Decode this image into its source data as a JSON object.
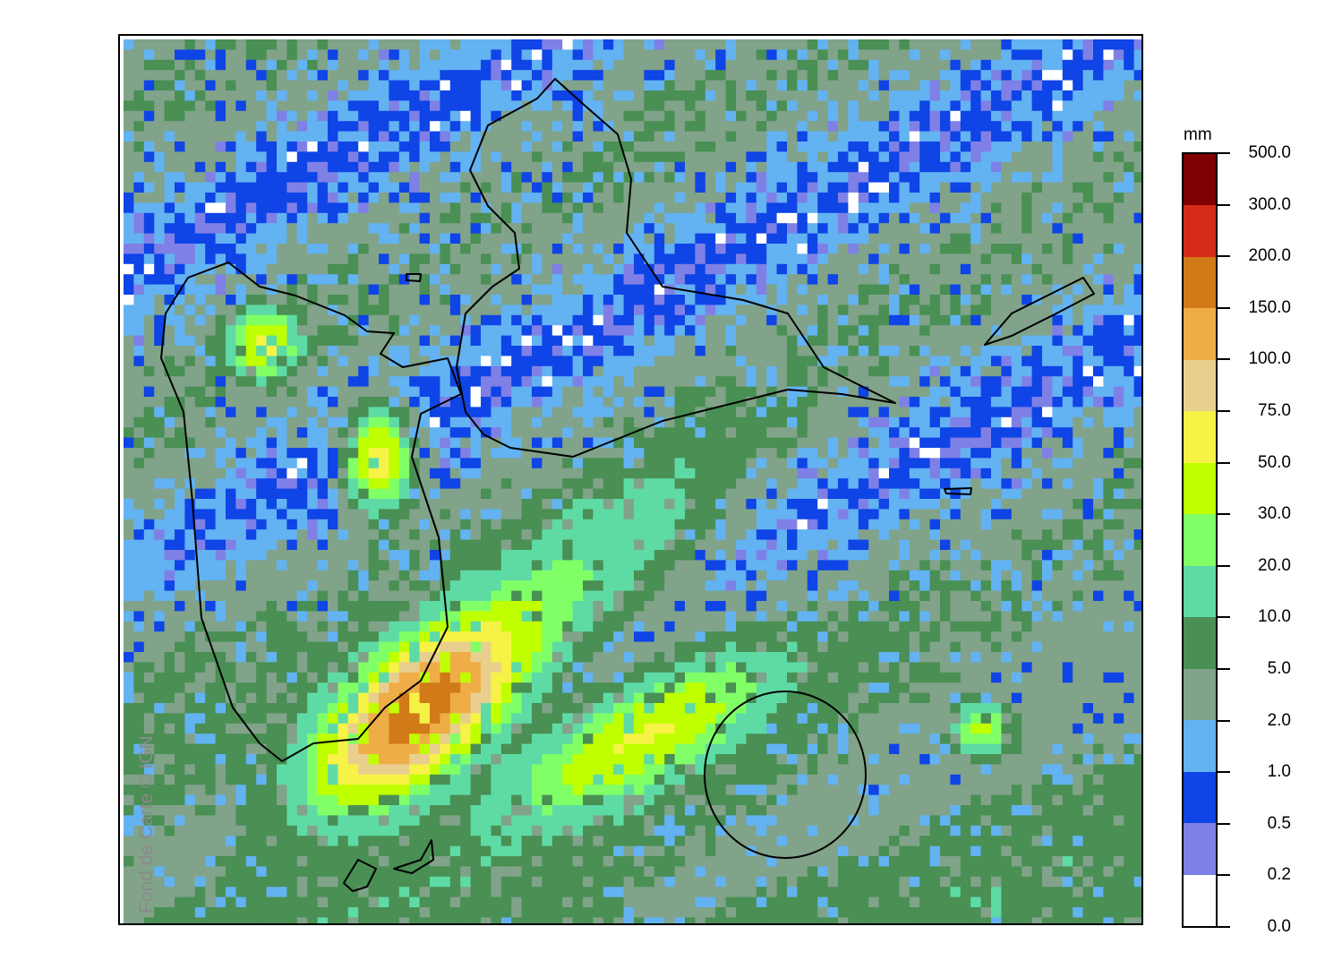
{
  "map": {
    "type": "gridded precipitation map",
    "watermark": "Fond de Carte © IGN",
    "coastline_color": "#000000"
  },
  "legend": {
    "unit": "mm",
    "bins": [
      {
        "from": "300.0",
        "to": "500.0",
        "color": "#7f0000"
      },
      {
        "from": "200.0",
        "to": "300.0",
        "color": "#d42a1a"
      },
      {
        "from": "150.0",
        "to": "200.0",
        "color": "#d07a18"
      },
      {
        "from": "100.0",
        "to": "150.0",
        "color": "#efad48"
      },
      {
        "from": "75.0",
        "to": "100.0",
        "color": "#e8cf8e"
      },
      {
        "from": "50.0",
        "to": "75.0",
        "color": "#f6f246"
      },
      {
        "from": "30.0",
        "to": "50.0",
        "color": "#c0ff00"
      },
      {
        "from": "20.0",
        "to": "30.0",
        "color": "#80ff66"
      },
      {
        "from": "10.0",
        "to": "20.0",
        "color": "#5edba5"
      },
      {
        "from": "5.0",
        "to": "10.0",
        "color": "#4a8f54"
      },
      {
        "from": "2.0",
        "to": "5.0",
        "color": "#80a38a"
      },
      {
        "from": "1.0",
        "to": "2.0",
        "color": "#63b2f2"
      },
      {
        "from": "0.5",
        "to": "1.0",
        "color": "#0f44e6"
      },
      {
        "from": "0.2",
        "to": "0.5",
        "color": "#7f80e6"
      },
      {
        "from": "0.0",
        "to": "0.2",
        "color": "#ffffff"
      }
    ],
    "tick_labels": [
      "500.0",
      "300.0",
      "200.0",
      "150.0",
      "100.0",
      "75.0",
      "50.0",
      "30.0",
      "20.0",
      "10.0",
      "5.0",
      "2.0",
      "1.0",
      "0.5",
      "0.2",
      "0.0"
    ]
  }
}
